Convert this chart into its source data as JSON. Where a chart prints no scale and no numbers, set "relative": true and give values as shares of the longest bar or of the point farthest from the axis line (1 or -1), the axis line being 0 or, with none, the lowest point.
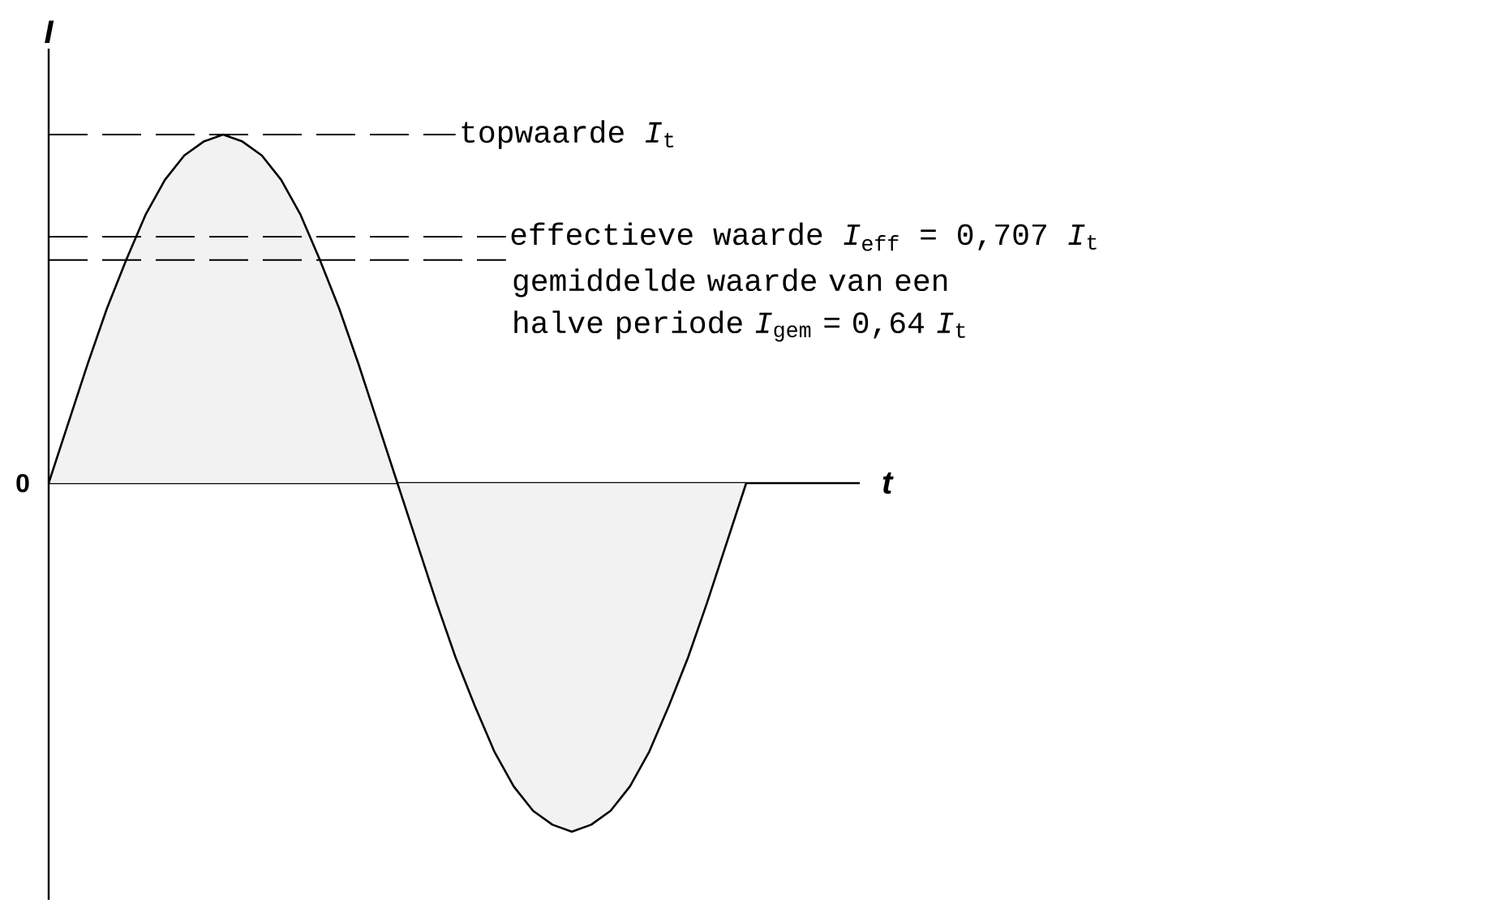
{
  "chart_data": {
    "type": "area",
    "relative": true,
    "xlabel": "t",
    "ylabel": "I",
    "categories": [
      null,
      null,
      null,
      null,
      null,
      null,
      null,
      null,
      null,
      null,
      null,
      null,
      null,
      null,
      null,
      null,
      null,
      null,
      null,
      null,
      null,
      null,
      null,
      null,
      null,
      null,
      null,
      null,
      null,
      null,
      null,
      null,
      null,
      null,
      null,
      null,
      null
    ],
    "series": [
      {
        "color": "#000000",
        "values": [
          0,
          0.17,
          0.34,
          0.5,
          0.64,
          0.77,
          0.87,
          0.94,
          0.98,
          1,
          0.98,
          0.94,
          0.87,
          0.77,
          0.64,
          0.5,
          0.34,
          0.17,
          0,
          -0.17,
          -0.34,
          -0.5,
          -0.64,
          -0.77,
          -0.87,
          -0.94,
          -0.98,
          -1,
          -0.98,
          -0.94,
          -0.87,
          -0.77,
          -0.64,
          -0.5,
          -0.34,
          -0.17,
          0
        ]
      }
    ],
    "ref_lines": [
      {
        "axis": "y",
        "value": 1,
        "label": "topwaarde *I*$_{t}$",
        "line_style": "dashed"
      },
      {
        "axis": "y",
        "value": 0.707,
        "label": "effectieve waarde *I*$_{eff}$ = 0,707 *I*$_{t}$",
        "line_style": "dashed"
      },
      {
        "axis": "y",
        "value": 0.64,
        "label": "gemiddelde waarde van een halve periode *I*$_{gem}$ = 0,64 *I*$_{t}$",
        "line_style": "dashed"
      }
    ],
    "annotations": [
      "0"
    ]
  }
}
